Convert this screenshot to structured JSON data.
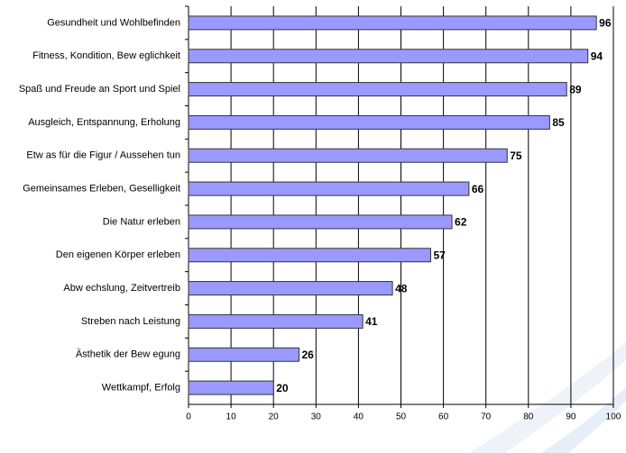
{
  "chart_data": {
    "type": "bar",
    "orientation": "horizontal",
    "categories": [
      "Gesundheit und Wohlbefinden",
      "Fitness, Kondition, Bew eglichkeit",
      "Spaß und Freude an Sport und Spiel",
      "Ausgleich, Entspannung, Erholung",
      "Etw as für die Figur / Aussehen tun",
      "Gemeinsames Erleben, Geselligkeit",
      "Die Natur erleben",
      "Den eigenen Körper erleben",
      "Abw echslung, Zeitvertreib",
      "Streben nach Leistung",
      "Ästhetik der Bew egung",
      "Wettkampf, Erfolg"
    ],
    "values": [
      96,
      94,
      89,
      85,
      75,
      66,
      62,
      57,
      48,
      41,
      26,
      20
    ],
    "color": "#9999ff",
    "xlim": [
      0,
      100
    ],
    "xticks": [
      0,
      10,
      20,
      30,
      40,
      50,
      60,
      70,
      80,
      90,
      100
    ],
    "grid": true
  }
}
